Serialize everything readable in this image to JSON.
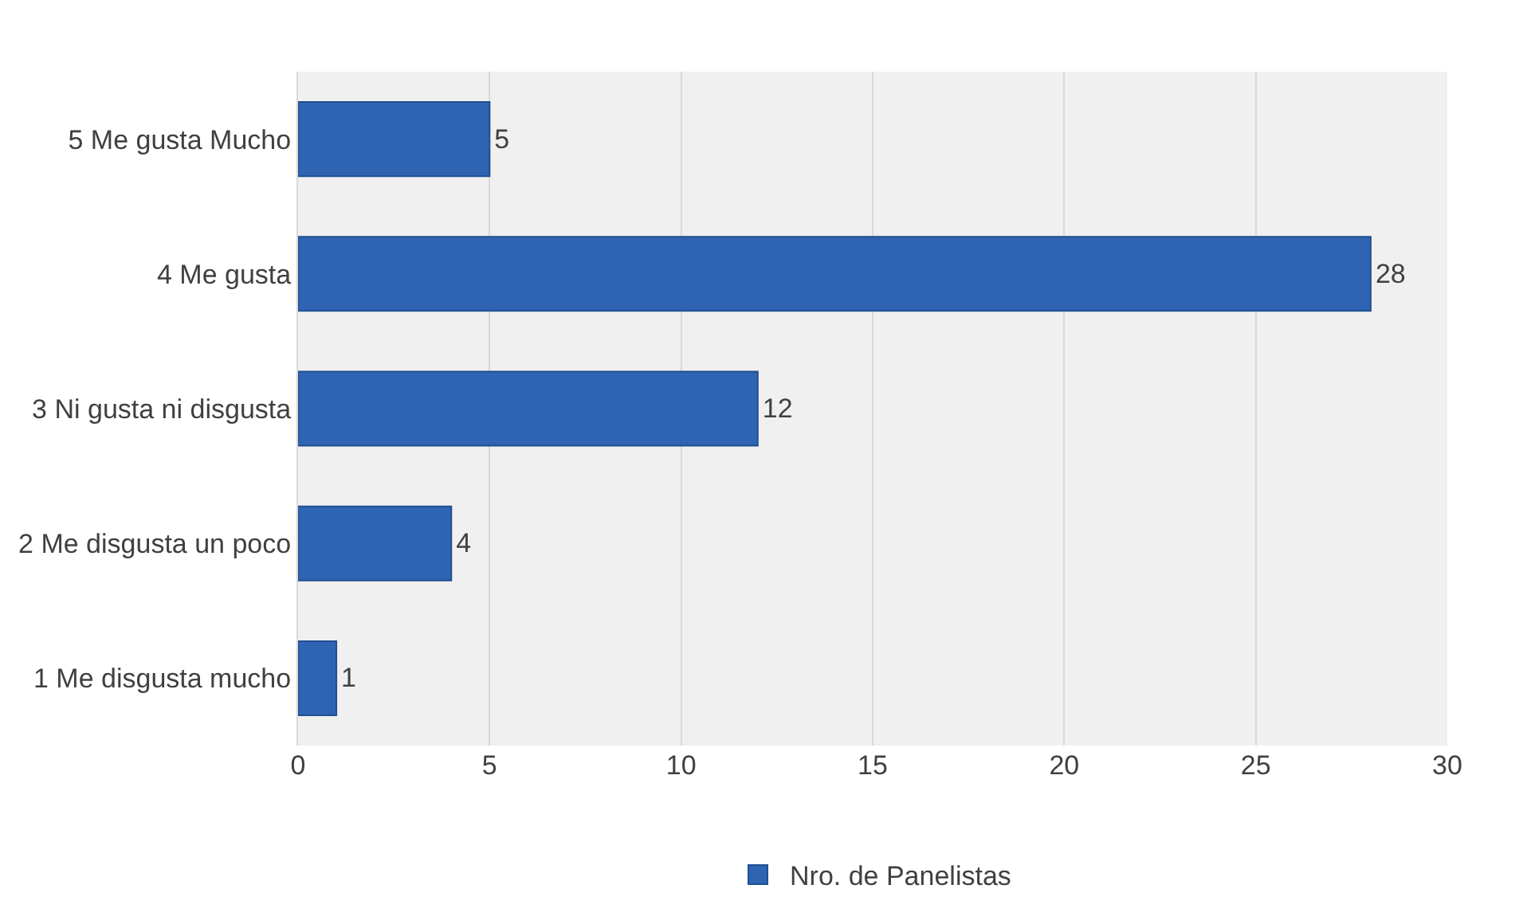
{
  "chart_data": {
    "type": "bar",
    "orientation": "horizontal",
    "categories": [
      "5 Me gusta Mucho",
      "4 Me gusta",
      "3 Ni gusta ni disgusta",
      "2 Me disgusta un poco",
      "1 Me disgusta mucho"
    ],
    "series": [
      {
        "name": "Nro. de Panelistas",
        "color": "#2f64b3",
        "values": [
          5,
          28,
          12,
          4,
          1
        ]
      }
    ],
    "xlim": [
      0,
      30
    ],
    "xticks": [
      0,
      5,
      10,
      15,
      20,
      25,
      30
    ],
    "grid": "x",
    "legend": "bottom",
    "data_labels": true
  }
}
